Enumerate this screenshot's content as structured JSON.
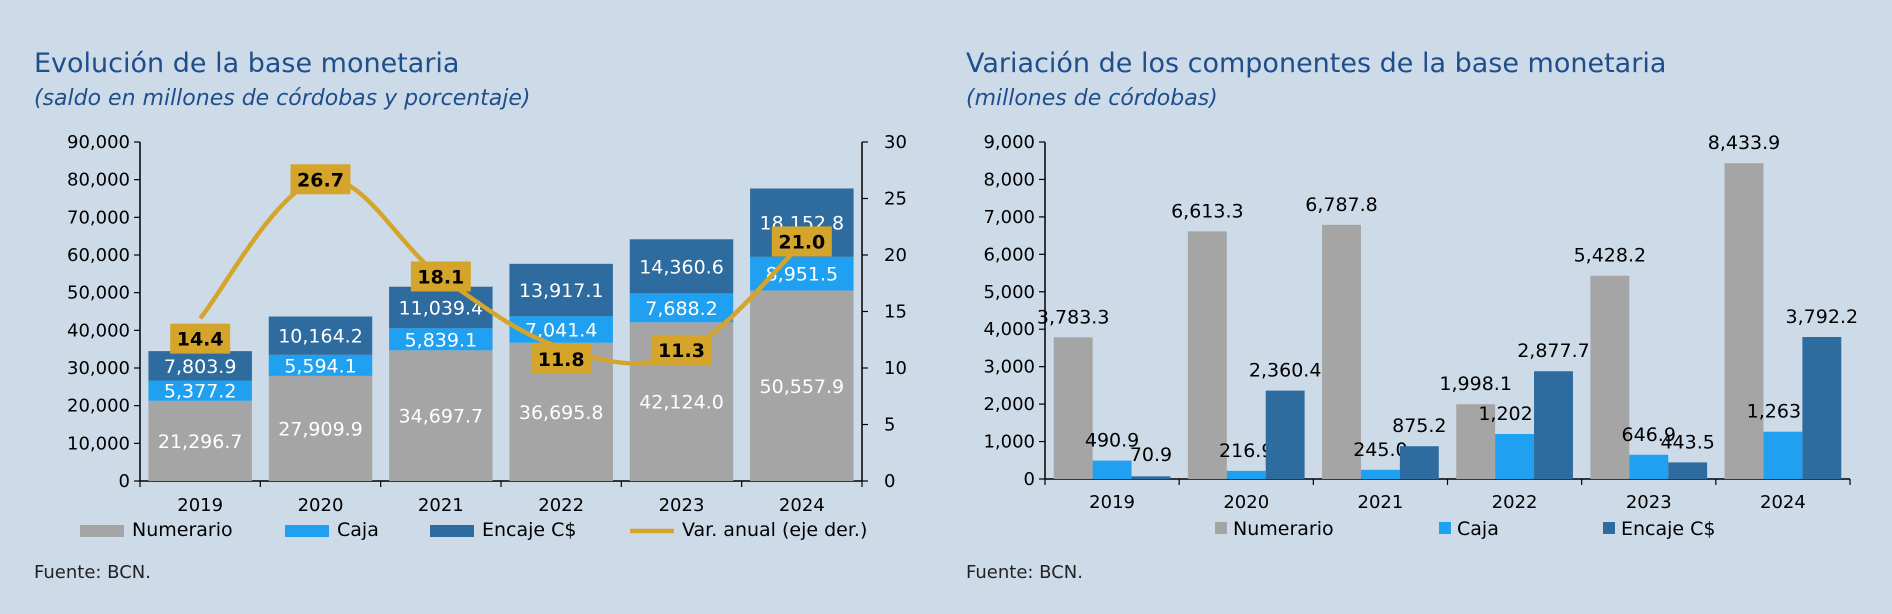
{
  "chart_data": [
    {
      "type": "bar",
      "stacked": true,
      "title": "Evolución de la base monetaria",
      "subtitle": "(saldo en millones de córdobas y porcentaje)",
      "source": "Fuente: BCN.",
      "categories": [
        "2019",
        "2020",
        "2021",
        "2022",
        "2023",
        "2024"
      ],
      "series": [
        {
          "name": "Numerario",
          "color": "#a5a5a5",
          "values": [
            21296.7,
            27909.9,
            34697.7,
            36695.8,
            42124.0,
            50557.9
          ],
          "labels": [
            "21,296.7",
            "27,909.9",
            "34,697.7",
            "36,695.8",
            "42,124.0",
            "50,557.9"
          ]
        },
        {
          "name": "Caja",
          "color": "#1fa0f0",
          "values": [
            5377.2,
            5594.1,
            5839.1,
            7041.4,
            7688.2,
            8951.5
          ],
          "labels": [
            "5,377.2",
            "5,594.1",
            "5,839.1",
            "7,041.4",
            "7,688.2",
            "8,951.5"
          ]
        },
        {
          "name": "Encaje C$",
          "color": "#2e6b9e",
          "values": [
            7803.9,
            10164.2,
            11039.4,
            13917.1,
            14360.6,
            18152.8
          ],
          "labels": [
            "7,803.9",
            "10,164.2",
            "11,039.4",
            "13,917.1",
            "14,360.6",
            "18,152.8"
          ]
        }
      ],
      "line_series": {
        "name": "Var. anual (eje der.)",
        "color": "#d4a52a",
        "axis": "right",
        "values": [
          14.4,
          26.7,
          18.1,
          11.8,
          11.3,
          21.0
        ],
        "labels": [
          "14.4",
          "26.7",
          "18.1",
          "11.8",
          "11.3",
          "21.0"
        ]
      },
      "ylim": [
        0,
        90000
      ],
      "yticks": [
        0,
        10000,
        20000,
        30000,
        40000,
        50000,
        60000,
        70000,
        80000,
        90000
      ],
      "ytick_labels": [
        "0",
        "10,000",
        "20,000",
        "30,000",
        "40,000",
        "50,000",
        "60,000",
        "70,000",
        "80,000",
        "90,000"
      ],
      "y2lim": [
        0,
        30
      ],
      "y2ticks": [
        0,
        5,
        10,
        15,
        20,
        25,
        30
      ],
      "y2tick_labels": [
        "0",
        "5",
        "10",
        "15",
        "20",
        "25",
        "30"
      ],
      "legend": [
        "Numerario",
        "Caja",
        "Encaje C$",
        "Var. anual (eje der.)"
      ],
      "legend_position": "bottom",
      "grid": false
    },
    {
      "type": "bar",
      "stacked": false,
      "title": "Variación de los componentes de la base monetaria",
      "subtitle": "(millones de córdobas)",
      "source": "Fuente: BCN.",
      "categories": [
        "2019",
        "2020",
        "2021",
        "2022",
        "2023",
        "2024"
      ],
      "series": [
        {
          "name": "Numerario",
          "color": "#a5a5a5",
          "values": [
            3783.3,
            6613.3,
            6787.8,
            1998.1,
            5428.2,
            8433.9
          ],
          "labels": [
            "3,783.3",
            "6,613.3",
            "6,787.8",
            "1,998.1",
            "5,428.2",
            "8,433.9"
          ]
        },
        {
          "name": "Caja",
          "color": "#1fa0f0",
          "values": [
            490.9,
            216.9,
            245.0,
            1202.2,
            646.9,
            1263.3
          ],
          "labels": [
            "490.9",
            "216.9",
            "245.0",
            "1,202.2",
            "646.9",
            "1,263.3"
          ]
        },
        {
          "name": "Encaje C$",
          "color": "#2e6b9e",
          "values": [
            70.9,
            2360.4,
            875.2,
            2877.7,
            443.5,
            3792.2
          ],
          "labels": [
            "70.9",
            "2,360.4",
            "875.2",
            "2,877.7",
            "443.5",
            "3,792.2"
          ]
        }
      ],
      "ylim": [
        0,
        9000
      ],
      "yticks": [
        0,
        1000,
        2000,
        3000,
        4000,
        5000,
        6000,
        7000,
        8000,
        9000
      ],
      "ytick_labels": [
        "0",
        "1,000",
        "2,000",
        "3,000",
        "4,000",
        "5,000",
        "6,000",
        "7,000",
        "8,000",
        "9,000"
      ],
      "legend": [
        "Numerario",
        "Caja",
        "Encaje C$"
      ],
      "legend_position": "bottom",
      "grid": false
    }
  ]
}
